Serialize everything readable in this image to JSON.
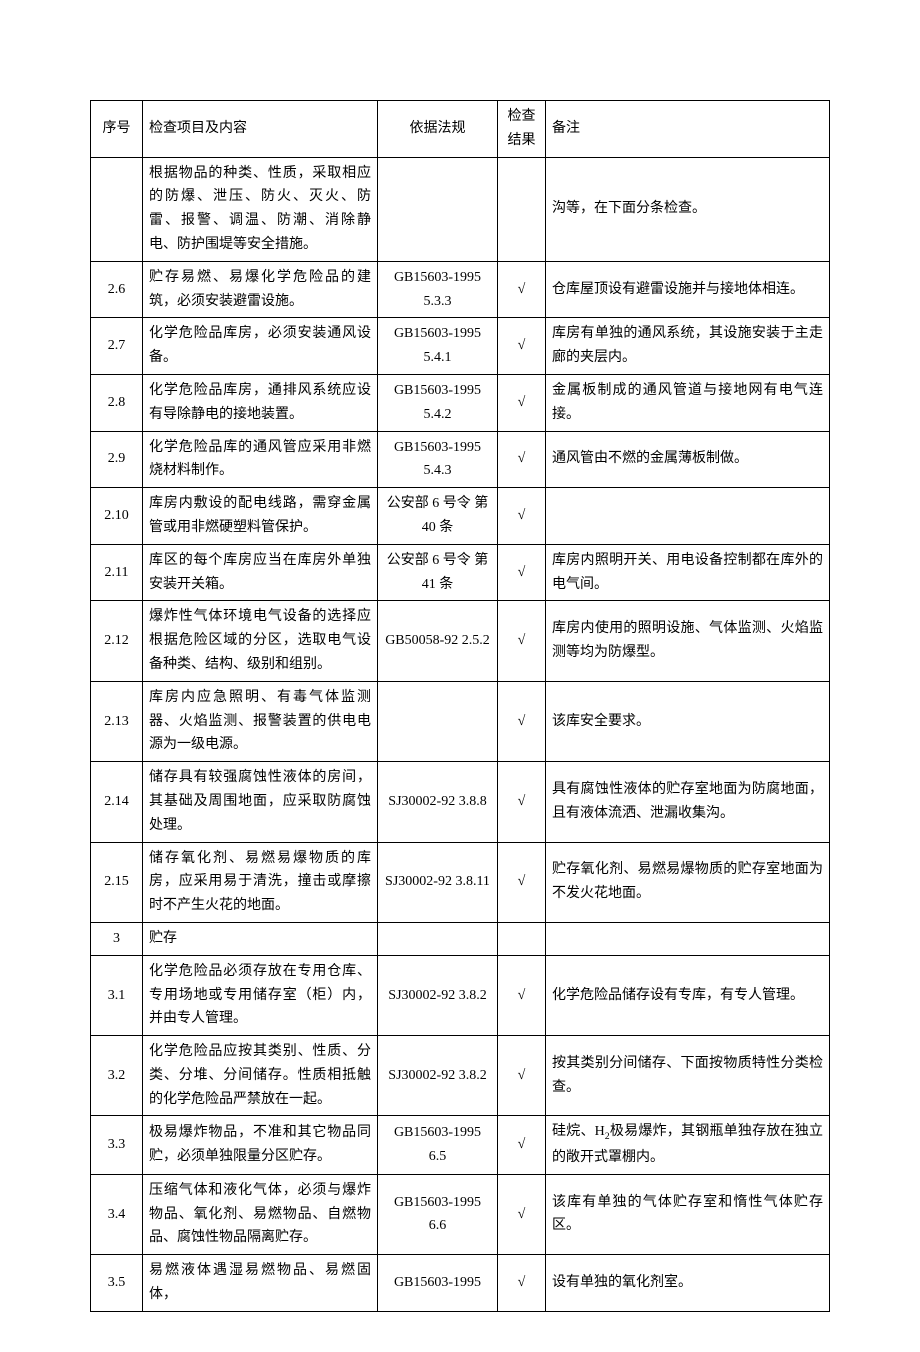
{
  "columns": {
    "seq": "序号",
    "item": "检查项目及内容",
    "basis": "依据法规",
    "result": "检查 结果",
    "note": "备注"
  },
  "check_mark": "√",
  "rows": [
    {
      "seq": "",
      "item": "根据物品的种类、性质，采取相应的防爆、泄压、防火、灭火、防雷、报警、调温、防潮、消除静电、防护围堤等安全措施。",
      "basis": "",
      "result": "",
      "note": "沟等，在下面分条检查。"
    },
    {
      "seq": "2.6",
      "item": "贮存易燃、易爆化学危险品的建筑，必须安装避雷设施。",
      "basis": "GB15603-1995 5.3.3",
      "result": "√",
      "note": "仓库屋顶设有避雷设施并与接地体相连。"
    },
    {
      "seq": "2.7",
      "item": "化学危险品库房，必须安装通风设备。",
      "basis": "GB15603-1995 5.4.1",
      "result": "√",
      "note": "库房有单独的通风系统，其设施安装于主走廊的夹层内。"
    },
    {
      "seq": "2.8",
      "item": "化学危险品库房，通排风系统应设有导除静电的接地装置。",
      "basis": "GB15603-1995 5.4.2",
      "result": "√",
      "note": "金属板制成的通风管道与接地网有电气连接。"
    },
    {
      "seq": "2.9",
      "item": "化学危险品库的通风管应采用非燃烧材料制作。",
      "basis": "GB15603-1995 5.4.3",
      "result": "√",
      "note": "通风管由不燃的金属薄板制做。"
    },
    {
      "seq": "2.10",
      "item": "库房内敷设的配电线路，需穿金属管或用非燃硬塑料管保护。",
      "basis": "公安部 6 号令 第 40 条",
      "result": "√",
      "note": ""
    },
    {
      "seq": "2.11",
      "item": "库区的每个库房应当在库房外单独安装开关箱。",
      "basis": "公安部 6 号令 第 41 条",
      "result": "√",
      "note": "库房内照明开关、用电设备控制都在库外的电气间。"
    },
    {
      "seq": "2.12",
      "item": "爆炸性气体环境电气设备的选择应根据危险区域的分区，选取电气设备种类、结构、级别和组别。",
      "basis": "GB50058-92 2.5.2",
      "result": "√",
      "note": "库房内使用的照明设施、气体监测、火焰监测等均为防爆型。"
    },
    {
      "seq": "2.13",
      "item": "库房内应急照明、有毒气体监测器、火焰监测、报警装置的供电电源为一级电源。",
      "basis": "",
      "result": "√",
      "note": "该库安全要求。"
    },
    {
      "seq": "2.14",
      "item": "储存具有较强腐蚀性液体的房间，其基础及周围地面，应采取防腐蚀处理。",
      "basis": "SJ30002-92 3.8.8",
      "result": "√",
      "note": "具有腐蚀性液体的贮存室地面为防腐地面，且有液体流洒、泄漏收集沟。"
    },
    {
      "seq": "2.15",
      "item": "储存氧化剂、易燃易爆物质的库房，应采用易于清洗，撞击或摩擦时不产生火花的地面。",
      "basis": "SJ30002-92 3.8.11",
      "result": "√",
      "note": "贮存氧化剂、易燃易爆物质的贮存室地面为不发火花地面。"
    },
    {
      "seq": "3",
      "item": "贮存",
      "basis": "",
      "result": "",
      "note": ""
    },
    {
      "seq": "3.1",
      "item": "化学危险品必须存放在专用仓库、专用场地或专用储存室（柜）内，并由专人管理。",
      "basis": "SJ30002-92 3.8.2",
      "result": "√",
      "note": "化学危险品储存设有专库，有专人管理。"
    },
    {
      "seq": "3.2",
      "item": "化学危险品应按其类别、性质、分类、分堆、分间储存。性质相抵触的化学危险品严禁放在一起。",
      "basis": "SJ30002-92 3.8.2",
      "result": "√",
      "note": "按其类别分间储存、下面按物质特性分类检查。"
    },
    {
      "seq": "3.3",
      "item": "极易爆炸物品，不准和其它物品同贮，必须单独限量分区贮存。",
      "basis": "GB15603-1995 6.5",
      "result": "√",
      "note": "硅烷、H₂极易爆炸，其钢瓶单独存放在独立的敞开式罩棚内。"
    },
    {
      "seq": "3.4",
      "item": "压缩气体和液化气体，必须与爆炸物品、氧化剂、易燃物品、自燃物品、腐蚀性物品隔离贮存。",
      "basis": "GB15603-1995 6.6",
      "result": "√",
      "note": "该库有单独的气体贮存室和惰性气体贮存区。"
    },
    {
      "seq": "3.5",
      "item": "易燃液体遇湿易燃物品、易燃固体，",
      "basis": "GB15603-1995",
      "result": "√",
      "note": "设有单独的氧化剂室。"
    }
  ]
}
